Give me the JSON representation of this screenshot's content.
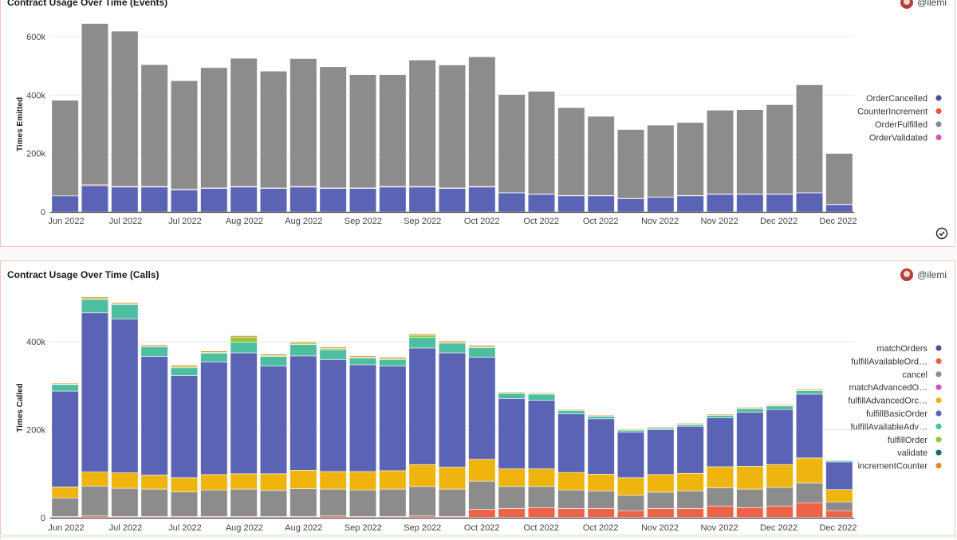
{
  "panels": [
    {
      "title": "Contract Usage Over Time (Events)",
      "author": "@ilemi"
    },
    {
      "title": "Contract Usage Over Time (Calls)",
      "author": "@ilemi"
    }
  ],
  "chart_data": [
    {
      "type": "bar",
      "stacked": true,
      "title": "Contract Usage Over Time (Events)",
      "xlabel": "",
      "ylabel": "Times Emitted",
      "ylim": [
        0,
        600000
      ],
      "yticks": [
        0,
        200000,
        400000,
        600000
      ],
      "ytick_labels": [
        "0",
        "200k",
        "400k",
        "600k"
      ],
      "x_tick_labels": [
        "Jun 2022",
        "Jul 2022",
        "Jul 2022",
        "Aug 2022",
        "Aug 2022",
        "Sep 2022",
        "Sep 2022",
        "Oct 2022",
        "Oct 2022",
        "Oct 2022",
        "Nov 2022",
        "Nov 2022",
        "Dec 2022",
        "Dec 2022"
      ],
      "legend_position": "right",
      "series": [
        {
          "name": "OrderCancelled",
          "color": "#5b63b5",
          "values": [
            55000,
            90000,
            85000,
            85000,
            75000,
            80000,
            85000,
            80000,
            85000,
            80000,
            80000,
            85000,
            85000,
            80000,
            85000,
            65000,
            60000,
            55000,
            55000,
            45000,
            50000,
            55000,
            60000,
            60000,
            60000,
            65000,
            25000
          ]
        },
        {
          "name": "CounterIncrement",
          "color": "#ee6347",
          "values": [
            0,
            3000,
            2000,
            2000,
            2000,
            2000,
            2000,
            2000,
            2000,
            2000,
            2000,
            2000,
            2000,
            2000,
            2000,
            1000,
            1000,
            1000,
            1000,
            1000,
            1000,
            1000,
            1000,
            1000,
            1000,
            1000,
            1000
          ]
        },
        {
          "name": "OrderFulfilled",
          "color": "#8c8c8c",
          "values": [
            327000,
            552000,
            532000,
            417000,
            372000,
            412000,
            439000,
            400000,
            438000,
            415000,
            388000,
            383000,
            433000,
            421000,
            444000,
            336000,
            352000,
            301000,
            271000,
            236000,
            246000,
            250000,
            287000,
            289000,
            306000,
            369000,
            174000
          ]
        },
        {
          "name": "OrderValidated",
          "color": "#d455b8",
          "values": [
            0,
            0,
            0,
            0,
            0,
            0,
            0,
            0,
            0,
            0,
            0,
            0,
            0,
            0,
            0,
            0,
            0,
            0,
            0,
            0,
            0,
            0,
            0,
            0,
            0,
            0,
            0
          ]
        }
      ]
    },
    {
      "type": "bar",
      "stacked": true,
      "title": "Contract Usage Over Time (Calls)",
      "xlabel": "",
      "ylabel": "Times Called",
      "ylim": [
        0,
        500000
      ],
      "yticks": [
        0,
        200000,
        400000
      ],
      "ytick_labels": [
        "0",
        "200k",
        "400k"
      ],
      "x_tick_labels": [
        "Jun 2022",
        "Jul 2022",
        "Jul 2022",
        "Aug 2022",
        "Aug 2022",
        "Sep 2022",
        "Sep 2022",
        "Oct 2022",
        "Oct 2022",
        "Oct 2022",
        "Nov 2022",
        "Nov 2022",
        "Dec 2022",
        "Dec 2022"
      ],
      "legend_position": "right",
      "series": [
        {
          "name": "matchOrders",
          "color": "#4a4f8f",
          "values": [
            1000,
            1000,
            1000,
            1000,
            1000,
            1000,
            1000,
            1000,
            1000,
            1000,
            1000,
            1000,
            1000,
            1000,
            1000,
            1000,
            1000,
            1000,
            1000,
            1000,
            1000,
            1000,
            1000,
            1000,
            1000,
            1000,
            1000
          ]
        },
        {
          "name": "fulfillAvailableOrders",
          "color": "#ee6347",
          "values": [
            2000,
            3000,
            2000,
            2000,
            2000,
            2000,
            2000,
            2000,
            2000,
            3000,
            2000,
            2000,
            3000,
            2000,
            18000,
            20000,
            22000,
            20000,
            20000,
            15000,
            20000,
            20000,
            25000,
            22000,
            25000,
            33000,
            15000
          ]
        },
        {
          "name": "cancel",
          "color": "#8c8c8c",
          "values": [
            42000,
            68000,
            64000,
            62000,
            56000,
            60000,
            62000,
            59000,
            63000,
            61000,
            60000,
            62000,
            67000,
            62000,
            64000,
            50000,
            48000,
            42000,
            40000,
            35000,
            37000,
            40000,
            42000,
            42000,
            43000,
            45000,
            20000
          ]
        },
        {
          "name": "matchAdvancedOrders",
          "color": "#d455b8",
          "values": [
            0,
            0,
            0,
            0,
            0,
            0,
            0,
            0,
            0,
            0,
            0,
            0,
            0,
            0,
            0,
            0,
            0,
            0,
            0,
            0,
            0,
            0,
            0,
            0,
            0,
            0,
            0
          ]
        },
        {
          "name": "fulfillAdvancedOrder",
          "color": "#f0b40e",
          "values": [
            25000,
            32000,
            35000,
            32000,
            32000,
            35000,
            35000,
            38000,
            42000,
            40000,
            42000,
            42000,
            50000,
            50000,
            50000,
            40000,
            40000,
            40000,
            38000,
            40000,
            40000,
            40000,
            48000,
            52000,
            52000,
            57000,
            28000
          ]
        },
        {
          "name": "fulfillBasicOrder",
          "color": "#5b63b5",
          "values": [
            218000,
            362000,
            350000,
            270000,
            232000,
            256000,
            275000,
            245000,
            260000,
            255000,
            243000,
            238000,
            265000,
            260000,
            232000,
            160000,
            156000,
            133000,
            126000,
            104000,
            102000,
            107000,
            111000,
            123000,
            125000,
            145000,
            63000
          ]
        },
        {
          "name": "fulfillAvailableAdvancedOrders",
          "color": "#4dbfa0",
          "values": [
            15000,
            30000,
            33000,
            22000,
            18000,
            20000,
            24000,
            22000,
            26000,
            22000,
            15000,
            15000,
            24000,
            22000,
            22000,
            12000,
            14000,
            8000,
            6000,
            4000,
            4000,
            4000,
            6000,
            8000,
            8000,
            8000,
            3000
          ]
        },
        {
          "name": "fulfillOrder",
          "color": "#93c83c",
          "values": [
            1000,
            3000,
            1000,
            1000,
            3000,
            2000,
            12000,
            2000,
            3000,
            3000,
            2000,
            2000,
            5000,
            2000,
            2000,
            1000,
            1000,
            1000,
            1000,
            1000,
            1000,
            1000,
            1000,
            1000,
            1000,
            2000,
            1000
          ]
        },
        {
          "name": "validate",
          "color": "#1a6b5a",
          "values": [
            0,
            0,
            0,
            0,
            0,
            0,
            0,
            0,
            0,
            0,
            0,
            0,
            0,
            0,
            0,
            0,
            0,
            0,
            0,
            0,
            0,
            0,
            0,
            0,
            0,
            0,
            0
          ]
        },
        {
          "name": "incrementCounter",
          "color": "#e08a2a",
          "values": [
            2000,
            3000,
            3000,
            3000,
            3000,
            3000,
            3000,
            3000,
            3000,
            3000,
            3000,
            3000,
            3000,
            3000,
            3000,
            2000,
            2000,
            2000,
            2000,
            2000,
            2000,
            2000,
            2000,
            2000,
            2000,
            2000,
            1000
          ]
        }
      ]
    }
  ],
  "legends": [
    {
      "items": [
        {
          "label": "OrderCancelled",
          "color": "#4a4f9a"
        },
        {
          "label": "CounterIncrement",
          "color": "#e9583a"
        },
        {
          "label": "OrderFulfilled",
          "color": "#8c8c8c"
        },
        {
          "label": "OrderValidated",
          "color": "#d455b8"
        }
      ]
    },
    {
      "items": [
        {
          "label": "matchOrders",
          "color": "#4a4f8f"
        },
        {
          "label": "fulfillAvailableOrders",
          "display": "fulfillAvailableOrd…",
          "color": "#ee6347"
        },
        {
          "label": "cancel",
          "color": "#8c8c8c"
        },
        {
          "label": "matchAdvancedOrders",
          "display": "matchAdvancedO…",
          "color": "#d455b8"
        },
        {
          "label": "fulfillAdvancedOrder",
          "display": "fulfillAdvancedOrc…",
          "color": "#f0b40e"
        },
        {
          "label": "fulfillBasicOrder",
          "color": "#5b63b5"
        },
        {
          "label": "fulfillAvailableAdvancedOrders",
          "display": "fulfillAvailableAdv…",
          "color": "#4dbfa0"
        },
        {
          "label": "fulfillOrder",
          "color": "#93c83c"
        },
        {
          "label": "validate",
          "color": "#1a6b5a"
        },
        {
          "label": "incrementCounter",
          "color": "#e08a2a"
        }
      ]
    }
  ]
}
